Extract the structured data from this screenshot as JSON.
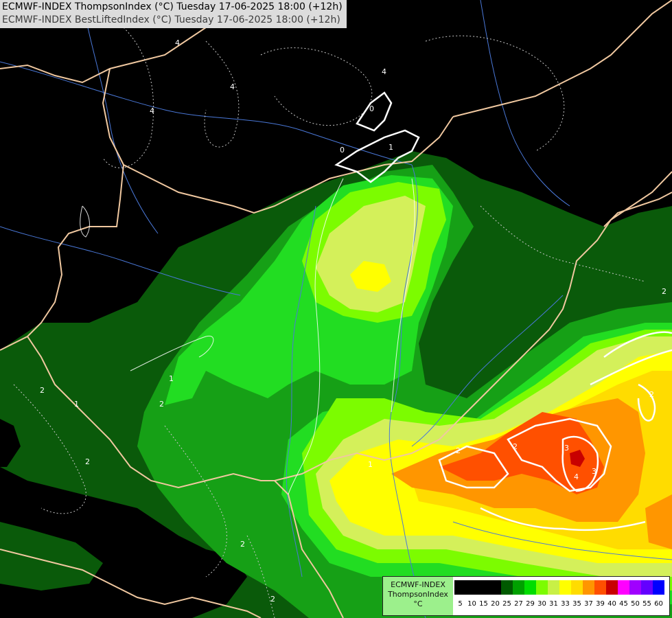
{
  "header": {
    "line1": "ECMWF-INDEX ThompsonIndex (°C) Tuesday 17-06-2025 18:00 (+12h)",
    "line2": "ECMWF-INDEX BestLiftedIndex (°C) Tuesday 17-06-2025 18:00 (+12h)"
  },
  "legend": {
    "title": "ECMWF-INDEX",
    "field": "ThompsonIndex",
    "unit": "°C",
    "values": [
      "5",
      "10",
      "15",
      "20",
      "25",
      "27",
      "29",
      "30",
      "31",
      "33",
      "35",
      "37",
      "39",
      "40",
      "45",
      "50",
      "55",
      "60"
    ],
    "colors": [
      "#000000",
      "#000000",
      "#000000",
      "#000000",
      "#005a00",
      "#00a000",
      "#00dd00",
      "#7cfc00",
      "#c8f046",
      "#ffff00",
      "#ffdc00",
      "#ff9600",
      "#ff5000",
      "#c80000",
      "#ff00ff",
      "#a000ff",
      "#6400ff",
      "#0000ff"
    ]
  },
  "contour_labels": [
    "4",
    "4",
    "4",
    "0",
    "4",
    "0",
    "1",
    "2",
    "1",
    "2",
    "2",
    "2",
    "2",
    "2",
    "2",
    "3",
    "3",
    "4",
    "2",
    "2",
    "1",
    "1"
  ],
  "colors": {
    "background": "#000000",
    "border": "#f0c8a0",
    "river": "#4a78d8",
    "contour": "#ffffff"
  }
}
